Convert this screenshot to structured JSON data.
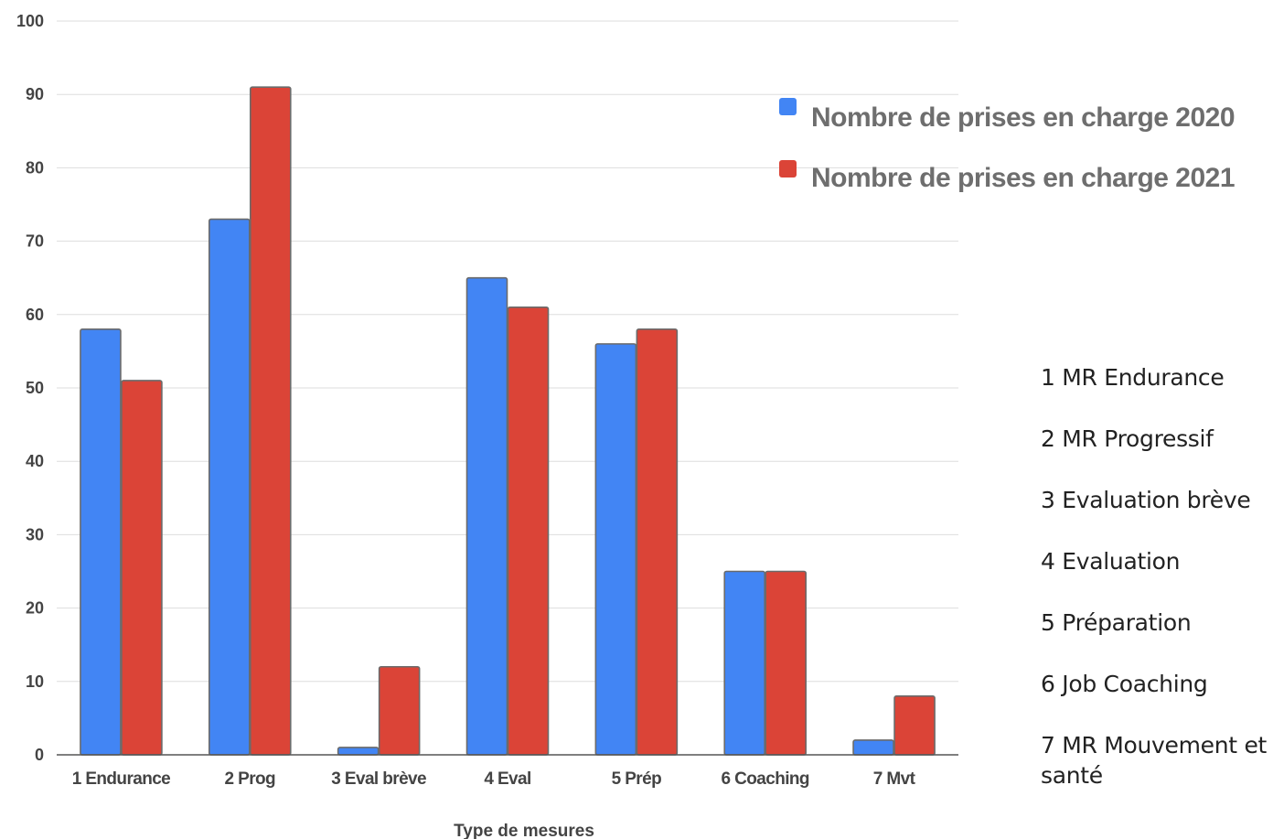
{
  "chart_data": {
    "type": "bar",
    "title": "",
    "xlabel": "Type de mesures",
    "ylabel": "",
    "ylim": [
      0,
      100
    ],
    "yticks": [
      "0",
      "10",
      "20",
      "30",
      "40",
      "50",
      "60",
      "70",
      "80",
      "90",
      "100"
    ],
    "grid": true,
    "legend_position": "top-right",
    "categories": [
      "1 Endurance",
      "2 Prog",
      "3 Eval brève",
      "4 Eval",
      "5 Prép",
      "6 Coaching",
      "7 Mvt"
    ],
    "series": [
      {
        "name": "Nombre de prises en charge 2020",
        "color": "#4285f4",
        "values": [
          58,
          73,
          1,
          65,
          56,
          25,
          2
        ]
      },
      {
        "name": "Nombre de prises en charge 2021",
        "color": "#db4437",
        "values": [
          51,
          91,
          12,
          61,
          58,
          25,
          8
        ]
      }
    ]
  },
  "category_key": [
    "1 MR Endurance",
    "2 MR Progressif",
    "3 Evaluation brève",
    "4 Evaluation",
    "5 Préparation",
    "6 Job Coaching",
    "7 MR Mouvement et santé"
  ]
}
